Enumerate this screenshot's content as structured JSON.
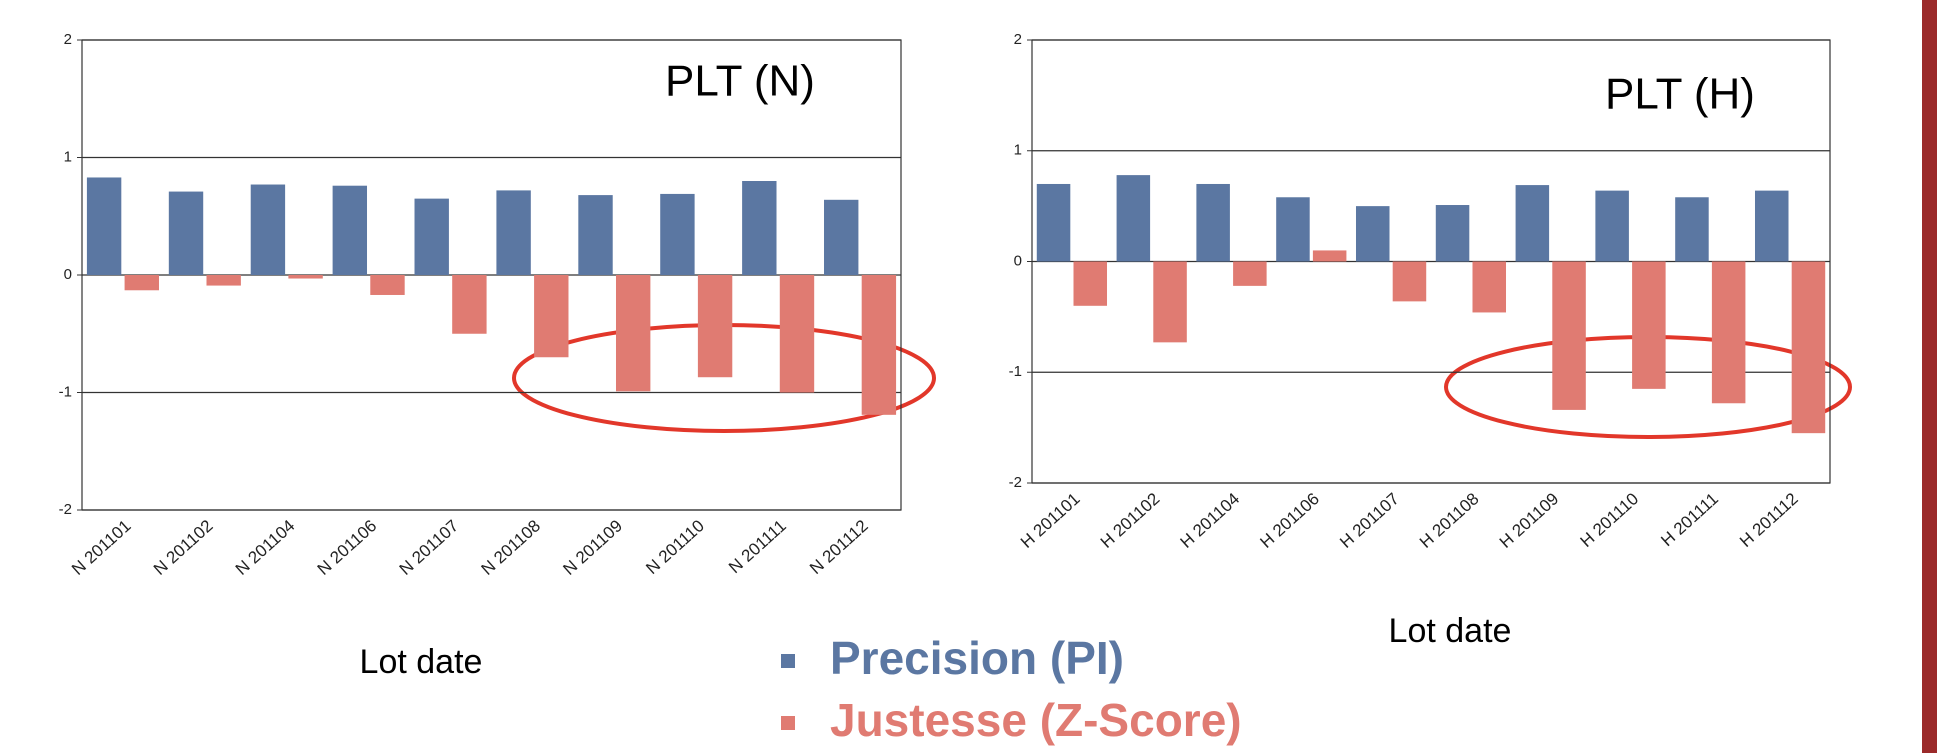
{
  "chart_data": [
    {
      "type": "bar",
      "title": "PLT (N)",
      "x_label": "Lot date",
      "categories": [
        "N 201101",
        "N 201102",
        "N 201104",
        "N 201106",
        "N 201107",
        "N 201108",
        "N 201109",
        "N 201110",
        "N 201111",
        "N 201112"
      ],
      "series": [
        {
          "name": "Precision (PI)",
          "color": "#5b77a2",
          "values": [
            0.83,
            0.71,
            0.77,
            0.76,
            0.65,
            0.72,
            0.68,
            0.69,
            0.8,
            0.64
          ]
        },
        {
          "name": "Justesse (Z-Score)",
          "color": "#e07b72",
          "values": [
            -0.13,
            -0.09,
            -0.03,
            -0.17,
            -0.5,
            -0.7,
            -0.99,
            -0.87,
            -1.0,
            -1.19
          ]
        }
      ],
      "ylim": [
        -2,
        2
      ],
      "yticks": [
        -2,
        -1,
        0,
        1,
        2
      ],
      "grid": true
    },
    {
      "type": "bar",
      "title": "PLT (H)",
      "x_label": "Lot date",
      "categories": [
        "H 201101",
        "H 201102",
        "H 201104",
        "H 201106",
        "H 201107",
        "H 201108",
        "H 201109",
        "H 201110",
        "H 201111",
        "H 201112"
      ],
      "series": [
        {
          "name": "Precision (PI)",
          "color": "#5b77a2",
          "values": [
            0.7,
            0.78,
            0.7,
            0.58,
            0.5,
            0.51,
            0.69,
            0.64,
            0.58,
            0.64
          ]
        },
        {
          "name": "Justesse (Z-Score)",
          "color": "#e07b72",
          "values": [
            -0.4,
            -0.73,
            -0.22,
            0.1,
            -0.36,
            -0.46,
            -1.34,
            -1.15,
            -1.28,
            -1.55
          ]
        }
      ],
      "ylim": [
        -2,
        2
      ],
      "yticks": [
        -2,
        -1,
        0,
        1,
        2
      ],
      "grid": true
    }
  ]
}
